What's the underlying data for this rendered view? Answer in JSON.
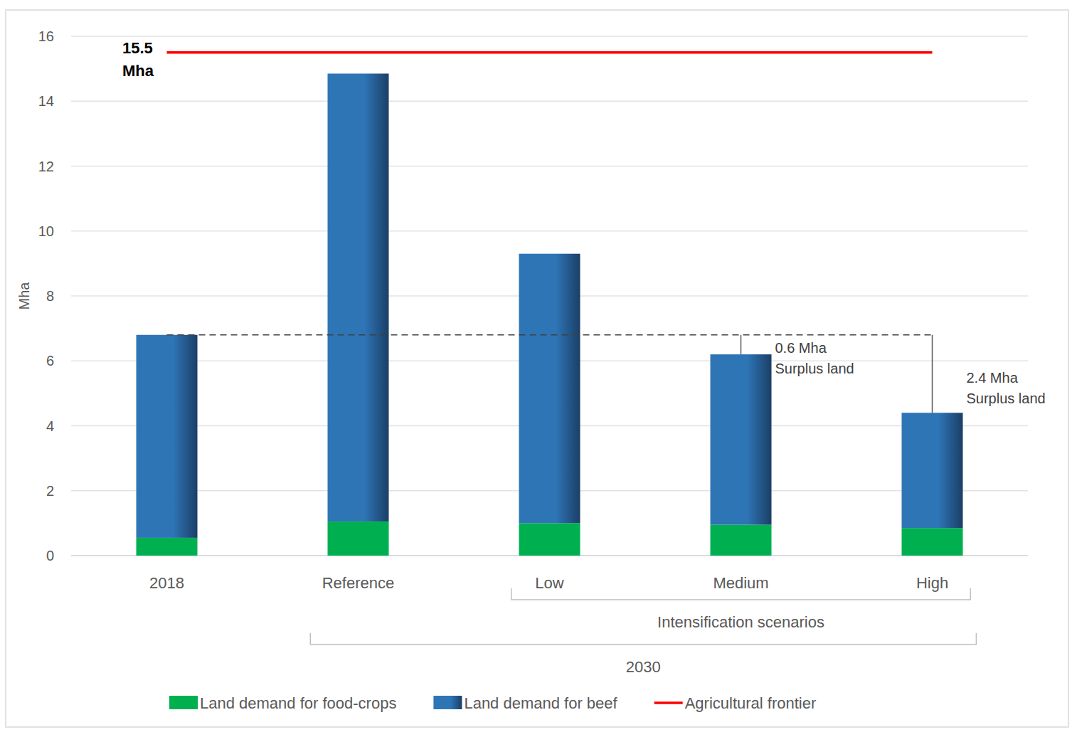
{
  "chart_data": {
    "type": "bar",
    "stacked": true,
    "y_label": "Mha",
    "categories": [
      "2018",
      "Reference",
      "Low",
      "Medium",
      "High"
    ],
    "series": [
      {
        "name": "Land demand for food-crops",
        "color": "#00b050",
        "values": [
          0.55,
          1.05,
          1.0,
          0.95,
          0.85
        ]
      },
      {
        "name": "Land demand for beef",
        "color": "#2e75b6",
        "values": [
          6.25,
          13.8,
          8.3,
          5.25,
          3.55
        ]
      }
    ],
    "ylim": [
      0,
      16
    ],
    "yticks": [
      0,
      2,
      4,
      6,
      8,
      10,
      12,
      14,
      16
    ],
    "grid": true,
    "legend": "bottom",
    "frontier": {
      "name": "Agricultural frontier",
      "value": 15.5,
      "label_lines": [
        "15.5",
        "Mha"
      ],
      "color": "#ff0000"
    },
    "baseline": {
      "value": 6.8
    },
    "annotations": [
      {
        "category": "Medium",
        "lines": [
          "0.6 Mha",
          "Surplus land"
        ]
      },
      {
        "category": "High",
        "lines": [
          "2.4 Mha",
          "Surplus land"
        ]
      }
    ],
    "category_groups": [
      {
        "label": "Intensification scenarios",
        "from": "Low",
        "to": "High"
      },
      {
        "label": "2030",
        "from": "Reference",
        "to": "High"
      }
    ]
  }
}
